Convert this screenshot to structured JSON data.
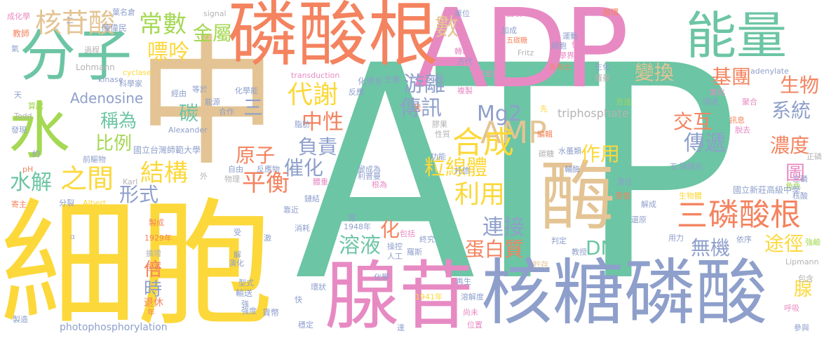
{
  "palette": {
    "teal": "#6cc5a4",
    "orange": "#f4835f",
    "yellow": "#fcd83a",
    "pink": "#e78ac3",
    "blue": "#8e9fcb",
    "green": "#a5d853",
    "tan": "#e4c494",
    "gray": "#b3b3b3"
  },
  "words": {
    "atp": "ATP",
    "adp": "ADP",
    "zhong": "中",
    "xibao": "細胞",
    "linsuangen_top": "磷酸根",
    "hetang": "核糖磷酸",
    "xiangan": "腺苷",
    "meilarge": "酶",
    "fenzi": "分子",
    "nengliang": "能量",
    "shui": "水",
    "hegansuan": "核苷酸",
    "changshu": "常數",
    "jinshu": "金屬",
    "piaoling": "嘌呤",
    "daixie": "代謝",
    "amp": "AMP",
    "hecheng": "合成",
    "linsuangen2": "磷酸根",
    "san_right": "三",
    "shu": "數",
    "youli": "游離",
    "chuanxun": "傳訊",
    "mg2": "Mg2",
    "zhongxing": "中性",
    "tan": "碳",
    "san_mid": "三",
    "adenosine": "Adenosine",
    "chengwei": "稱為",
    "bili": "比例",
    "jiegou": "結構",
    "zhijian": "之間",
    "shuijie": "水解",
    "xingshi": "形式",
    "pingheng": "平衡",
    "yuanzi": "原子",
    "fuze": "負責",
    "cuihua": "催化",
    "lixiantiv": "粒線體",
    "liyong": "利用",
    "zuoyong": "作用",
    "chuandi": "傳遞",
    "jiaohu": "交互",
    "biandan": "變換",
    "jituan": "基團",
    "shengwu": "生物",
    "xitong": "系統",
    "nongdu": "濃度",
    "tu": "圖",
    "hua": "化",
    "rongye": "溶液",
    "lianjie": "連接",
    "danbaizhi": "蛋白質",
    "dna": "DNA",
    "wuji": "無機",
    "tujing": "途徑",
    "xian_small": "腺",
    "bei": "倍",
    "shi": "時",
    "triphosphate": "triphosphate",
    "photophosphorylation": "photophosphorylation",
    "lohmann": "Lohmann",
    "alexander": "Alexander",
    "cyclase": "cyclase",
    "kinase": "kinase",
    "transduction": "transduction",
    "adenylate": "adenylate",
    "todd": "Todd",
    "signal": "signal",
    "fritz": "Fritz",
    "karl": "Karl",
    "albert": "Albert",
    "lipmann": "Lipmann",
    "ph": "pH",
    "yeming": "葉名倉",
    "chenwei": "陳偉民",
    "jiaoshi": "教師",
    "chenghua": "成化學",
    "qi": "氣",
    "guocheng": "過程",
    "kexuejia": "科學家",
    "tian": "天",
    "suanqi": "算起",
    "faxian": "發現",
    "yue": "約",
    "jizhu": "寄主",
    "fenjie": "分裂",
    "danwei": "單位",
    "huishou": "回收",
    "suanhuan": "酸環",
    "jiacheng": "加成",
    "zhuanyi": "轉移",
    "gudai": "古代",
    "wutan": "五碳糖",
    "yunsong": "運動",
    "xibao_s": "細胞",
    "kexuejie": "科學界",
    "bingru": "併入",
    "jibuzhi": "吉布士",
    "ceding": "測定出",
    "luomo": "羅曼",
    "shenghua": "生化",
    "fanghang": "方法",
    "qihua": "氣化",
    "huanjing": "環境",
    "jiuhe": "聚合",
    "xunxi": "訊息",
    "tuoqu": "脫去",
    "huaxuexi": "化學系",
    "shengchan": "生產",
    "fanying": "反應",
    "fuzhi": "複製",
    "guang": "光",
    "xian_s": "先",
    "bianji": "編輯",
    "jiaoguo": "膠果",
    "xingzhi": "性質",
    "gongneng": "功能",
    "tanlei": "碳糖",
    "tuode": "托德",
    "zhengxing": "正磷",
    "sanjiaoling": "三磷",
    "wulinsuan": "五 磷酸化",
    "jiaose": "角色",
    "hesuan": "核酸",
    "shengwuti": "生物體",
    "guoli": "國立新莊高級中學",
    "jiaoshou": "教授",
    "zeren": "責任",
    "shoufa": "受發",
    "jiecheng": "解成",
    "huanyuan": "還原",
    "yongli": "用力",
    "yilai": "依序",
    "qiangjian": "強鹼",
    "baohe": "包含",
    "huxi": "呼吸",
    "canyu": "參與",
    "panding": "判定",
    "zhulong": "貯存",
    "fuzhu": "輔酶",
    "shuijienlei": "水蠆類",
    "guoli_shida": "國立台灣師範大學",
    "jingyou": "經由",
    "dengjia": "等於",
    "nengyuan": "能源",
    "hezuo": "合作",
    "huaxueneng": "化學能",
    "zhifang": "脂肪",
    "qianquduan": "前驅物",
    "wai": "外",
    "ziyou": "自由",
    "fanyingwu": "反應物",
    "wuli": "物理",
    "tiji": "體重",
    "bianchengwei": "變成為",
    "lipulian": "利普曼",
    "genwei": "根為",
    "liandai": "鏈結",
    "kaoqiang": "靠近",
    "chang": "常",
    "nian1948": "1948年",
    "baokuo": "包括",
    "zhongjiu": "終究",
    "caozuo": "操控",
    "rengong": "人工",
    "luoli": "羅斯",
    "tuojie": "托德",
    "xiaohao": "消耗",
    "shou": "受",
    "ji": "激",
    "jie": "解",
    "yanhua": "演化",
    "huaxue": "化學",
    "huanzhuang": "環狀",
    "zaisheng": "再生",
    "rongjiedu": "溶解度",
    "qiang": "強",
    "nian1941": "1941年",
    "huobi": "貨幣",
    "shangwei": "尚未",
    "weizhi": "位置",
    "kuai": "快",
    "wending": "穩定",
    "da": "達",
    "kuozhan": "擴增",
    "hanyou": "含有",
    "tuixiu": "退休",
    "shusong": "輸送",
    "xingshi2": "型式",
    "qiangdu": "強度",
    "zhizao": "製造",
    "nian": "年",
    "nian1929": "1929年",
    "ahpha": "α",
    "zhi": "製成",
    "er": "二"
  }
}
